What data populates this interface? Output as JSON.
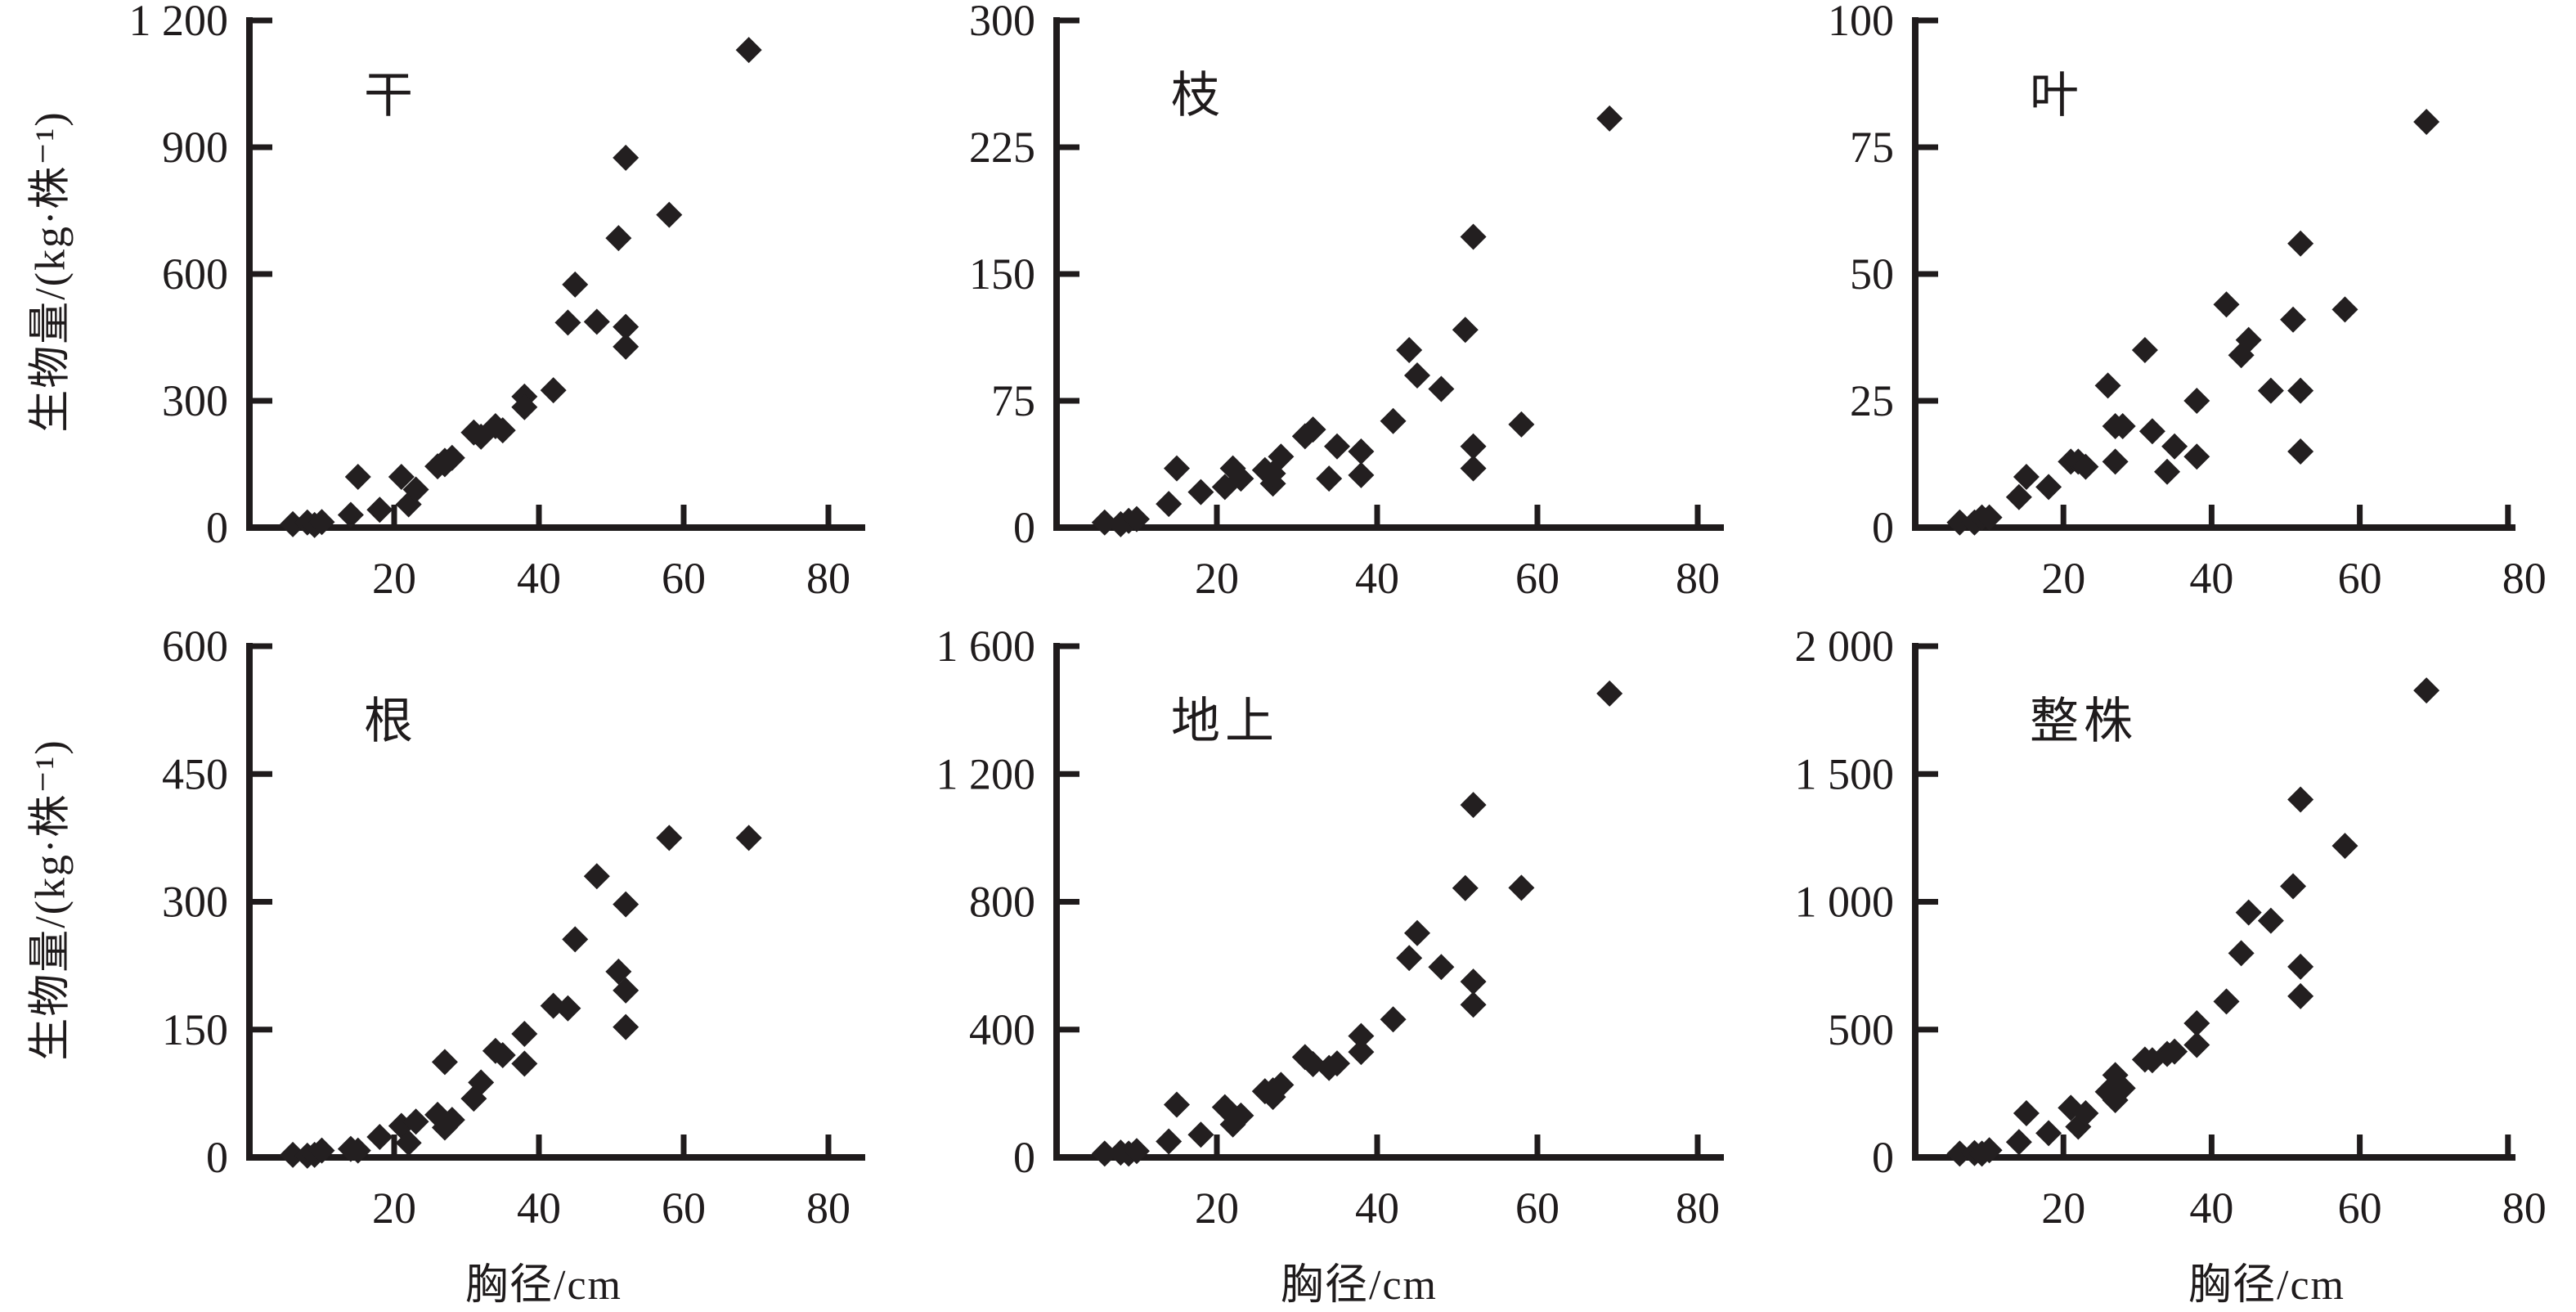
{
  "figure": {
    "y_axis_title": "生物量/(kg·株⁻¹)",
    "x_axis_title": "胸径/cm",
    "point_color": "#231f20",
    "axis_color": "#1f1b1c",
    "background_color": "#ffffff"
  },
  "chart_data": [
    {
      "type": "scatter",
      "title": "干",
      "xlabel": "",
      "ylabel": "生物量/(kg·株⁻¹)",
      "xlim": [
        0,
        80
      ],
      "ylim": [
        0,
        1200
      ],
      "xticks": [
        20,
        40,
        60,
        80
      ],
      "yticks": [
        0,
        300,
        600,
        900,
        1200
      ],
      "ytick_labels": [
        "0",
        "300",
        "600",
        "900",
        "1 200"
      ],
      "grid": false,
      "x": [
        6,
        8,
        9,
        10,
        14,
        15,
        18,
        21,
        22,
        23,
        26,
        27,
        27,
        28,
        31,
        32,
        34,
        35,
        38,
        38,
        42,
        44,
        45,
        48,
        51,
        52,
        52,
        52,
        58,
        69
      ],
      "y": [
        8,
        12,
        6,
        13,
        30,
        120,
        42,
        120,
        55,
        90,
        145,
        150,
        158,
        165,
        225,
        215,
        240,
        230,
        310,
        285,
        325,
        485,
        575,
        487,
        685,
        875,
        475,
        428,
        740,
        1130
      ]
    },
    {
      "type": "scatter",
      "title": "枝",
      "xlabel": "",
      "ylabel": "生物量/(kg·株⁻¹)",
      "xlim": [
        0,
        80
      ],
      "ylim": [
        0,
        300
      ],
      "xticks": [
        20,
        40,
        60,
        80
      ],
      "yticks": [
        0,
        75,
        150,
        225,
        300
      ],
      "ytick_labels": [
        "0",
        "75",
        "150",
        "225",
        "300"
      ],
      "grid": false,
      "x": [
        6,
        8,
        9,
        10,
        14,
        15,
        18,
        21,
        22,
        23,
        26,
        27,
        27,
        28,
        31,
        32,
        34,
        35,
        38,
        38,
        42,
        44,
        45,
        48,
        51,
        52,
        52,
        52,
        58,
        69
      ],
      "y": [
        3,
        2,
        4,
        5,
        14,
        35,
        21,
        24,
        35,
        29,
        34,
        26,
        32,
        42,
        54,
        58,
        29,
        48,
        45,
        31,
        63,
        105,
        90,
        82,
        117,
        172,
        48,
        35,
        61,
        242
      ]
    },
    {
      "type": "scatter",
      "title": "叶",
      "xlabel": "",
      "ylabel": "生物量/(kg·株⁻¹)",
      "xlim": [
        0,
        80
      ],
      "ylim": [
        0,
        100
      ],
      "xticks": [
        20,
        40,
        60,
        80
      ],
      "yticks": [
        0,
        25,
        50,
        75,
        100
      ],
      "ytick_labels": [
        "0",
        "25",
        "50",
        "75",
        "100"
      ],
      "grid": false,
      "x": [
        6,
        8,
        9,
        10,
        14,
        15,
        18,
        21,
        22,
        23,
        26,
        27,
        27,
        28,
        31,
        32,
        34,
        35,
        38,
        38,
        42,
        44,
        45,
        48,
        51,
        52,
        52,
        52,
        58,
        69
      ],
      "y": [
        1,
        1,
        2,
        2,
        6,
        10,
        8,
        13,
        13,
        12,
        28,
        13,
        20,
        20,
        35,
        19,
        11,
        16,
        25,
        14,
        44,
        34,
        37,
        27,
        41,
        56,
        27,
        15,
        43,
        80
      ]
    },
    {
      "type": "scatter",
      "title": "根",
      "xlabel": "胸径/cm",
      "ylabel": "生物量/(kg·株⁻¹)",
      "xlim": [
        0,
        80
      ],
      "ylim": [
        0,
        600
      ],
      "xticks": [
        20,
        40,
        60,
        80
      ],
      "yticks": [
        0,
        150,
        300,
        450,
        600
      ],
      "ytick_labels": [
        "0",
        "150",
        "300",
        "450",
        "600"
      ],
      "grid": false,
      "x": [
        6,
        8,
        9,
        10,
        14,
        15,
        18,
        21,
        22,
        23,
        26,
        27,
        27,
        28,
        31,
        32,
        34,
        35,
        38,
        38,
        42,
        44,
        45,
        48,
        51,
        52,
        52,
        52,
        58,
        69
      ],
      "y": [
        3,
        2,
        3,
        8,
        10,
        8,
        24,
        37,
        17,
        42,
        50,
        35,
        112,
        44,
        69,
        88,
        125,
        120,
        145,
        110,
        178,
        175,
        256,
        330,
        218,
        297,
        196,
        153,
        375,
        375
      ]
    },
    {
      "type": "scatter",
      "title": "地上",
      "xlabel": "胸径/cm",
      "ylabel": "生物量/(kg·株⁻¹)",
      "xlim": [
        0,
        80
      ],
      "ylim": [
        0,
        1600
      ],
      "xticks": [
        20,
        40,
        60,
        80
      ],
      "yticks": [
        0,
        400,
        800,
        1200,
        1600
      ],
      "ytick_labels": [
        "0",
        "400",
        "800",
        "1 200",
        "1 600"
      ],
      "grid": false,
      "x": [
        6,
        8,
        9,
        10,
        14,
        15,
        18,
        21,
        22,
        23,
        26,
        27,
        27,
        28,
        31,
        32,
        34,
        35,
        38,
        38,
        42,
        44,
        45,
        48,
        51,
        52,
        52,
        52,
        58,
        69
      ],
      "y": [
        12,
        15,
        12,
        20,
        50,
        165,
        71,
        157,
        103,
        131,
        207,
        189,
        210,
        227,
        314,
        292,
        280,
        294,
        380,
        330,
        432,
        624,
        702,
        596,
        843,
        1103,
        550,
        478,
        844,
        1452
      ]
    },
    {
      "type": "scatter",
      "title": "整株",
      "xlabel": "胸径/cm",
      "ylabel": "生物量/(kg·株⁻¹)",
      "xlim": [
        0,
        80
      ],
      "ylim": [
        0,
        2000
      ],
      "xticks": [
        20,
        40,
        60,
        80
      ],
      "yticks": [
        0,
        500,
        1000,
        1500,
        2000
      ],
      "ytick_labels": [
        "0",
        "500",
        "1 000",
        "1 500",
        "2 000"
      ],
      "grid": false,
      "x": [
        6,
        8,
        9,
        10,
        14,
        15,
        18,
        21,
        22,
        23,
        26,
        27,
        27,
        28,
        31,
        32,
        34,
        35,
        38,
        38,
        42,
        44,
        45,
        48,
        51,
        52,
        52,
        52,
        58,
        69
      ],
      "y": [
        15,
        17,
        15,
        28,
        60,
        173,
        95,
        194,
        120,
        173,
        257,
        224,
        322,
        271,
        383,
        380,
        405,
        414,
        525,
        440,
        610,
        799,
        958,
        926,
        1061,
        1400,
        746,
        631,
        1219,
        1827
      ]
    }
  ]
}
